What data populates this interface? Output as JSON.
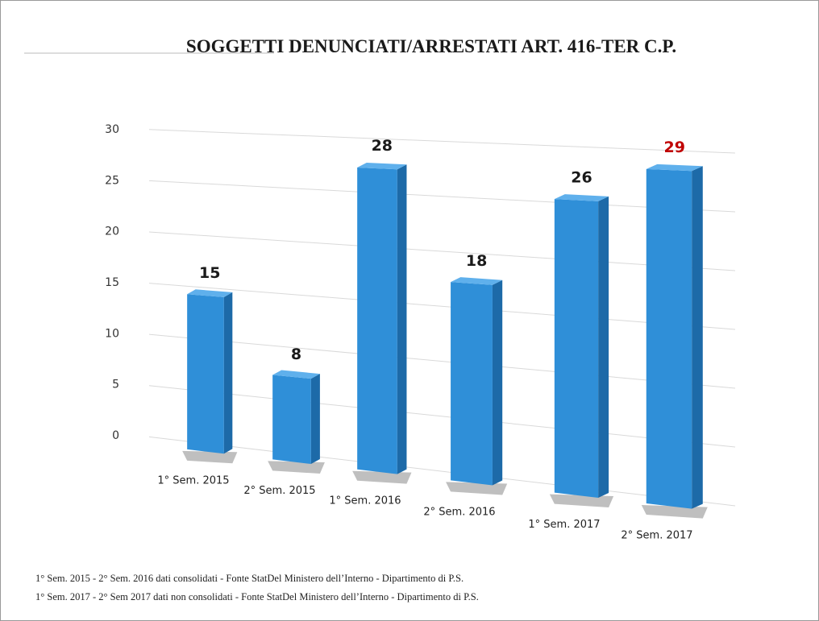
{
  "chart_data": {
    "type": "bar3d",
    "title": "SOGGETTI DENUNCIATI/ARRESTATI ART. 416-TER C.P.",
    "categories": [
      "1° Sem. 2015",
      "2° Sem. 2015",
      "1° Sem. 2016",
      "2° Sem. 2016",
      "1° Sem. 2017",
      "2° Sem. 2017"
    ],
    "values": [
      15,
      8,
      28,
      18,
      26,
      29
    ],
    "label_colors": [
      "#1a1a1a",
      "#1a1a1a",
      "#1a1a1a",
      "#1a1a1a",
      "#1a1a1a",
      "#c00000"
    ],
    "color": "#2f8fd8",
    "ylim": [
      0,
      30
    ],
    "yticks": [
      0,
      5,
      10,
      15,
      20,
      25,
      30
    ],
    "grid": true,
    "notes": [
      "1° Sem. 2015 - 2° Sem. 2016 dati consolidati - Fonte StatDel Ministero dell’Interno - Dipartimento di P.S.",
      "1° Sem. 2017 - 2° Sem 2017 dati non consolidati - Fonte StatDel Ministero dell’Interno - Dipartimento di P.S."
    ]
  }
}
